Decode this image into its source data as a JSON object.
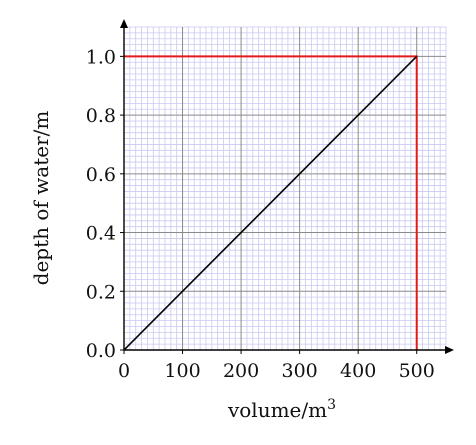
{
  "chart_data": {
    "type": "line",
    "title": "",
    "xlabel": "volume/m",
    "xlabel_superscript": "3",
    "ylabel": "depth of water/m",
    "xlim": [
      0,
      550
    ],
    "ylim": [
      0,
      1.1
    ],
    "x_ticks": [
      0,
      100,
      200,
      300,
      400,
      500
    ],
    "y_ticks": [
      0.0,
      0.2,
      0.4,
      0.6,
      0.8,
      1.0
    ],
    "x_tick_labels": [
      "0",
      "100",
      "200",
      "300",
      "400",
      "500"
    ],
    "y_tick_labels": [
      "0.0",
      "0.2",
      "0.4",
      "0.6",
      "0.8",
      "1.0"
    ],
    "grid": true,
    "grid_minor_step_x": 10,
    "grid_minor_step_y": 0.02,
    "series": [
      {
        "x": [
          0,
          500
        ],
        "y": [
          0,
          1.0
        ],
        "color": "#000000"
      }
    ],
    "reference_lines": [
      {
        "x": [
          0,
          500,
          500
        ],
        "y": [
          1.0,
          1.0,
          0
        ],
        "color": "#e31a1c"
      }
    ],
    "colors": {
      "major_grid": "#8a8a8a",
      "minor_grid": "#c9c9f2",
      "axis": "#000000"
    }
  }
}
